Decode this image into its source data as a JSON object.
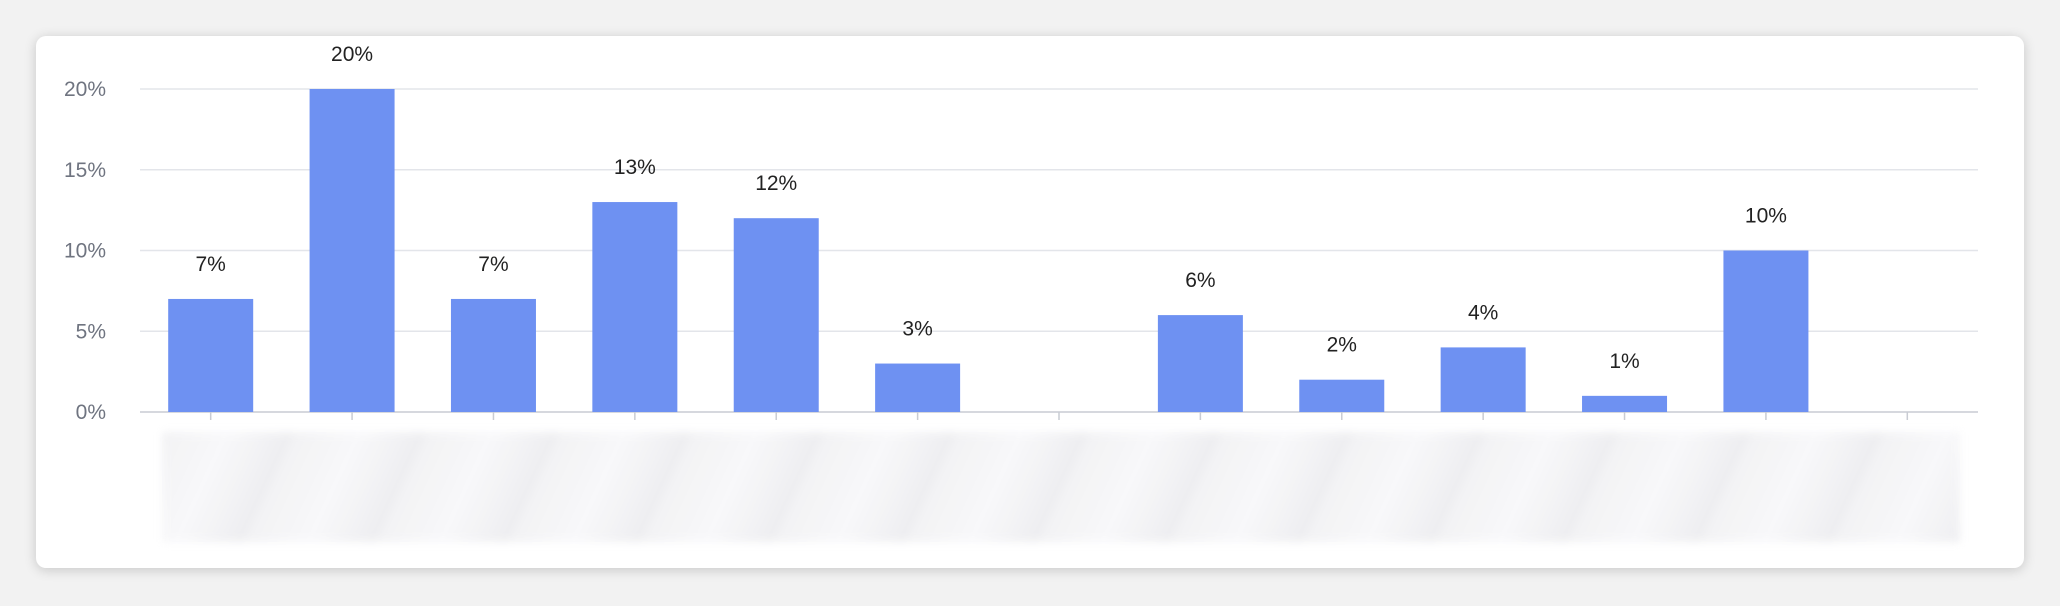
{
  "chart_data": {
    "type": "bar",
    "categories": [
      "",
      "",
      "",
      "",
      "",
      "",
      "",
      "",
      "",
      "",
      "",
      "",
      ""
    ],
    "values": [
      7,
      20,
      7,
      13,
      12,
      3,
      0,
      6,
      2,
      4,
      1,
      10,
      0
    ],
    "data_labels": [
      "7%",
      "20%",
      "7%",
      "13%",
      "12%",
      "3%",
      "",
      "6%",
      "2%",
      "4%",
      "1%",
      "10%",
      ""
    ],
    "y_ticks": [
      "0%",
      "5%",
      "10%",
      "15%",
      "20%"
    ],
    "ylim": [
      0,
      20
    ],
    "grid": true,
    "bar_color": "#6e91f2",
    "x_labels_obscured": true
  }
}
